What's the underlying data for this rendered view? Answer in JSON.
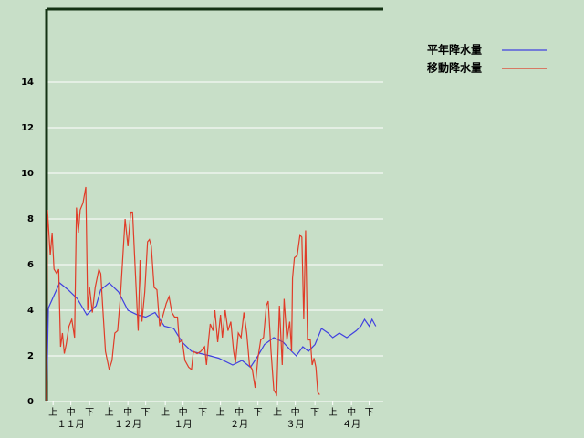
{
  "chart_data": {
    "type": "line",
    "xlim": [
      0,
      180
    ],
    "xticks": [
      {
        "value": 3.5,
        "label": "上"
      },
      {
        "value": 13,
        "label": "中"
      },
      {
        "value": 23,
        "label": "下"
      },
      {
        "value": 33.5,
        "label": "上"
      },
      {
        "value": 43.5,
        "label": "中"
      },
      {
        "value": 53,
        "label": "下"
      },
      {
        "value": 63.5,
        "label": "上"
      },
      {
        "value": 73,
        "label": "中"
      },
      {
        "value": 83.5,
        "label": "下"
      },
      {
        "value": 93,
        "label": "上"
      },
      {
        "value": 103,
        "label": "中"
      },
      {
        "value": 113,
        "label": "下"
      },
      {
        "value": 123.5,
        "label": "上"
      },
      {
        "value": 133,
        "label": "中"
      },
      {
        "value": 143.5,
        "label": "下"
      },
      {
        "value": 153,
        "label": "上"
      },
      {
        "value": 163,
        "label": "中"
      },
      {
        "value": 172.5,
        "label": "下"
      }
    ],
    "month_labels": [
      {
        "value": 13,
        "label": "１１月"
      },
      {
        "value": 43.5,
        "label": "１２月"
      },
      {
        "value": 73,
        "label": "１月"
      },
      {
        "value": 103,
        "label": "２月"
      },
      {
        "value": 133,
        "label": "３月"
      },
      {
        "value": 163,
        "label": "４月"
      }
    ],
    "ylim": [
      0,
      17.2
    ],
    "yticks": [
      0,
      2,
      4,
      6,
      8,
      10,
      12,
      14
    ],
    "grid": true,
    "legend": "top-right",
    "series": [
      {
        "name": "平年降水量",
        "color": "#4040e0",
        "x": [
          0,
          1,
          7,
          11.5,
          16.5,
          21.5,
          26.5,
          29,
          33.5,
          38.5,
          43.5,
          48.5,
          53,
          58,
          63,
          68,
          72.5,
          77.5,
          82.5,
          87.5,
          92,
          99.5,
          104.5,
          109,
          113,
          116.5,
          121.5,
          126.5,
          131,
          133.5,
          137,
          140,
          143.5,
          147,
          150.5,
          153,
          156.5,
          160.5,
          165.5,
          168,
          170,
          172.5,
          174,
          176
        ],
        "values": [
          0,
          4.1,
          5.2,
          4.9,
          4.5,
          3.8,
          4.2,
          4.9,
          5.2,
          4.8,
          4.0,
          3.8,
          3.7,
          3.9,
          3.3,
          3.2,
          2.6,
          2.2,
          2.1,
          2.0,
          1.9,
          1.6,
          1.8,
          1.5,
          2.0,
          2.5,
          2.8,
          2.6,
          2.2,
          2.0,
          2.4,
          2.2,
          2.5,
          3.2,
          3.0,
          2.8,
          3.0,
          2.8,
          3.1,
          3.3,
          3.6,
          3.3,
          3.6,
          3.3
        ]
      },
      {
        "name": "移動降水量",
        "color": "#e03c28",
        "x": [
          0,
          0.5,
          2,
          3,
          4,
          5.5,
          6.5,
          7.5,
          8.5,
          9.5,
          10.5,
          12,
          13.5,
          15,
          16,
          17,
          18,
          19.5,
          21,
          22,
          23,
          24.5,
          26,
          28,
          29,
          30,
          31.5,
          33.5,
          35,
          36.5,
          38,
          39.5,
          42,
          43.5,
          45,
          46,
          47,
          48.5,
          49,
          50,
          51,
          52.5,
          54,
          55,
          56,
          57.5,
          59,
          60.5,
          62,
          64,
          65.5,
          67,
          68.5,
          70,
          71,
          72.5,
          74,
          76,
          77.5,
          78.5,
          80.5,
          82.5,
          84.5,
          85.5,
          86.5,
          87.5,
          89,
          90,
          91.5,
          93,
          94,
          95.5,
          97,
          98.5,
          100,
          101,
          102.5,
          104,
          105.5,
          107,
          108.5,
          110,
          111.5,
          113,
          114.5,
          116,
          117.5,
          118.5,
          120,
          121.5,
          123,
          124.5,
          126,
          127,
          128.5,
          130,
          131,
          131.5,
          132.5,
          134,
          135.5,
          136.5,
          137.5,
          138.5,
          139.5,
          141,
          142,
          143,
          144,
          145,
          146
        ],
        "values": [
          0,
          8.4,
          6.4,
          7.4,
          5.8,
          5.6,
          5.8,
          2.4,
          3.0,
          2.1,
          2.5,
          3.3,
          3.6,
          2.8,
          8.5,
          7.4,
          8.4,
          8.7,
          9.4,
          4.0,
          5.0,
          3.9,
          5.0,
          5.8,
          5.6,
          4.2,
          2.2,
          1.4,
          1.8,
          3.0,
          3.1,
          4.6,
          8.0,
          6.8,
          8.3,
          8.3,
          6.5,
          3.9,
          3.1,
          6.2,
          3.5,
          4.8,
          7.0,
          7.1,
          6.8,
          5.0,
          4.9,
          3.3,
          3.7,
          4.3,
          4.6,
          3.9,
          3.7,
          3.7,
          2.6,
          2.7,
          1.8,
          1.5,
          1.4,
          2.2,
          2.1,
          2.2,
          2.4,
          1.6,
          2.6,
          3.4,
          3.1,
          4.0,
          2.6,
          3.8,
          2.8,
          4.0,
          3.1,
          3.5,
          2.2,
          1.7,
          3.0,
          2.8,
          3.9,
          3.0,
          1.6,
          1.4,
          0.6,
          1.9,
          2.7,
          2.8,
          4.2,
          4.4,
          2.2,
          0.5,
          0.3,
          4.2,
          1.6,
          4.5,
          2.7,
          3.5,
          2.2,
          5.4,
          6.3,
          6.4,
          7.3,
          7.2,
          3.6,
          7.5,
          2.7,
          2.7,
          1.6,
          1.9,
          1.5,
          0.4,
          0.3
        ]
      }
    ]
  }
}
